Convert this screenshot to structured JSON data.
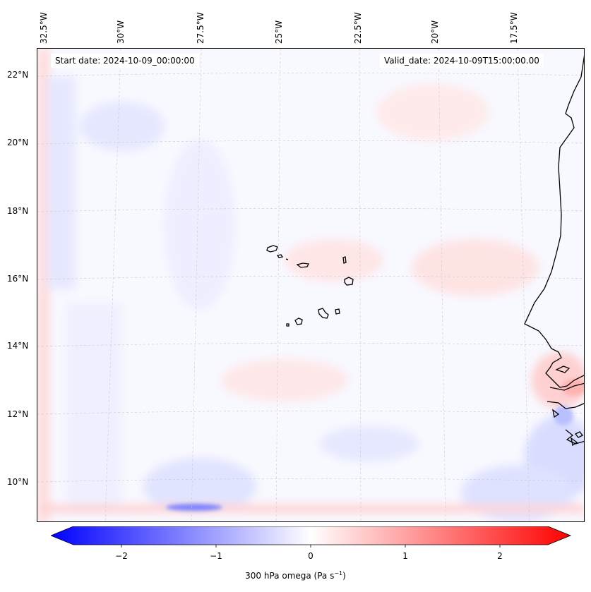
{
  "header": {
    "start_date": "Start date: 2024-10-09_00:00:00",
    "valid_date": "Valid_date: 2024-10-09T15:00:00.00"
  },
  "axes": {
    "lon_labels": [
      "32.5°W",
      "30°W",
      "27.5°W",
      "25°W",
      "22.5°W",
      "20°W",
      "17.5°W"
    ],
    "lat_labels": [
      "22°N",
      "20°N",
      "18°N",
      "16°N",
      "14°N",
      "12°N",
      "10°N"
    ]
  },
  "colorbar": {
    "ticks": [
      "−2",
      "−1",
      "0",
      "1",
      "2"
    ],
    "label": "300 hPa omega (Pa s",
    "label_sup": "−1",
    "label_close": ")",
    "vmin": -2.7,
    "vmax": 2.7,
    "colors": {
      "low": "#0000ff",
      "mid": "#ffffff",
      "high": "#ff0000"
    }
  },
  "map": {
    "field": "300 hPa omega",
    "gridlines": true,
    "coastline_color": "#000000",
    "region": "Cape Verde / West African coast"
  }
}
